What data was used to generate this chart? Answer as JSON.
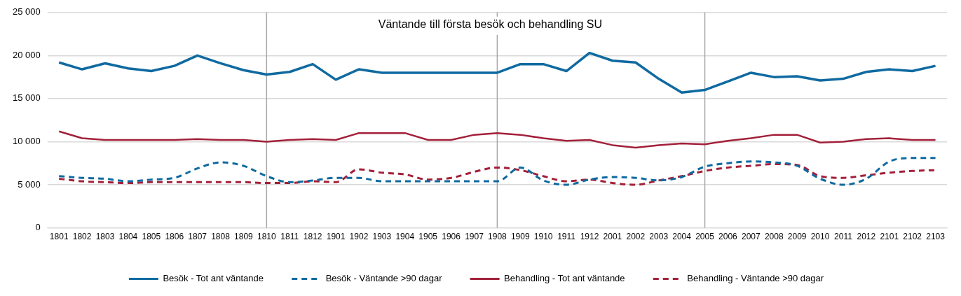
{
  "chart_data": {
    "type": "line",
    "title": "Väntande till första besök och behandling SU",
    "categories": [
      "1801",
      "1802",
      "1803",
      "1804",
      "1805",
      "1806",
      "1807",
      "1808",
      "1809",
      "1810",
      "1811",
      "1812",
      "1901",
      "1902",
      "1903",
      "1904",
      "1905",
      "1906",
      "1907",
      "1908",
      "1909",
      "1910",
      "1911",
      "1912",
      "2001",
      "2002",
      "2003",
      "2004",
      "2005",
      "2006",
      "2007",
      "2008",
      "2009",
      "2010",
      "2011",
      "2012",
      "2101",
      "2102",
      "2103"
    ],
    "series": [
      {
        "name": "Besök - Tot ant väntande",
        "color": "#0f6aa0",
        "line_style": "solid",
        "values": [
          19200,
          18400,
          19100,
          18500,
          18200,
          18800,
          20000,
          19100,
          18300,
          17800,
          18100,
          19000,
          17200,
          18400,
          18000,
          18000,
          18000,
          18000,
          18000,
          18000,
          19000,
          19000,
          18200,
          20300,
          19400,
          19200,
          17300,
          15700,
          16000,
          17000,
          18000,
          17500,
          17600,
          17100,
          17300,
          18100,
          18400,
          18200,
          18800
        ]
      },
      {
        "name": "Besök - Väntande >90 dagar",
        "color": "#0f6aa0",
        "line_style": "dashed",
        "values": [
          6000,
          5800,
          5700,
          5400,
          5600,
          5800,
          6900,
          7600,
          7200,
          6000,
          5300,
          5500,
          5800,
          5800,
          5400,
          5400,
          5400,
          5400,
          5400,
          5400,
          7000,
          5500,
          5000,
          5600,
          5900,
          5800,
          5500,
          5900,
          7100,
          7500,
          7700,
          7600,
          7200,
          5700,
          5000,
          5700,
          7700,
          8100,
          8100
        ]
      },
      {
        "name": "Behandling - Tot ant väntande",
        "color": "#a3203a",
        "line_style": "solid",
        "values": [
          11200,
          10400,
          10200,
          10200,
          10200,
          10200,
          10300,
          10200,
          10200,
          10000,
          10200,
          10300,
          10200,
          11000,
          11000,
          11000,
          10200,
          10200,
          10800,
          11000,
          10800,
          10400,
          10100,
          10200,
          9600,
          9300,
          9600,
          9800,
          9700,
          10100,
          10400,
          10800,
          10800,
          9900,
          10000,
          10300,
          10400,
          10200,
          10200
        ]
      },
      {
        "name": "Behandling - Väntande >90 dagar",
        "color": "#a3203a",
        "line_style": "dashed",
        "values": [
          5700,
          5400,
          5300,
          5200,
          5300,
          5300,
          5300,
          5300,
          5300,
          5200,
          5200,
          5400,
          5300,
          6800,
          6400,
          6200,
          5600,
          5800,
          6500,
          7000,
          6700,
          6000,
          5400,
          5600,
          5200,
          5000,
          5500,
          6000,
          6600,
          7000,
          7200,
          7400,
          7300,
          6000,
          5800,
          6100,
          6400,
          6600,
          6700
        ]
      }
    ],
    "ylim": [
      0,
      25000
    ],
    "yticks": [
      0,
      {
        "value": 5000,
        "label": "5 000"
      },
      {
        "value": 10000,
        "label": "10 000"
      },
      {
        "value": 15000,
        "label": "15 000"
      },
      {
        "value": 20000,
        "label": "20 000"
      },
      {
        "value": 25000,
        "label": "25 000"
      }
    ],
    "ref_lines": [
      {
        "axis": "x",
        "value": "1810",
        "color": "#a6a6a6"
      },
      {
        "axis": "x",
        "value": "1908",
        "color": "#a6a6a6"
      },
      {
        "axis": "x",
        "value": "2005",
        "color": "#a6a6a6"
      }
    ],
    "grid": "y",
    "legend": "bottom",
    "marker": "none"
  }
}
